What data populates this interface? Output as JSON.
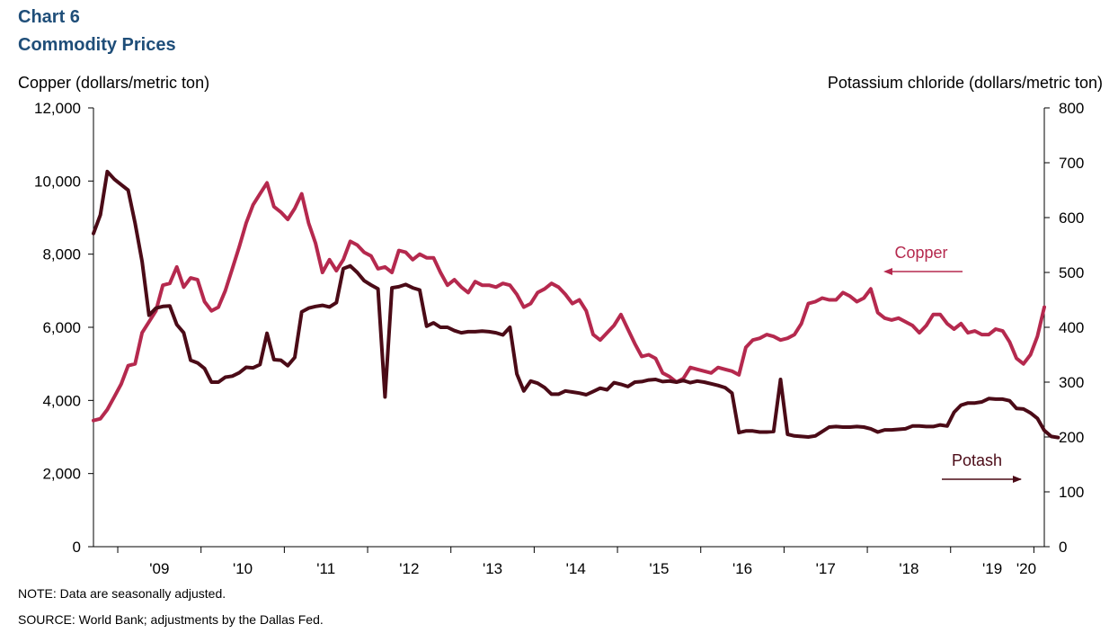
{
  "header": {
    "chart_number": "Chart 6",
    "title": "Commodity  Prices"
  },
  "axes": {
    "left_title": "Copper (dollars/metric ton)",
    "right_title": "Potassium chloride (dollars/metric ton)"
  },
  "footer": {
    "note": "NOTE:  Data are seasonally adjusted.",
    "source": "SOURCE:  World Bank; adjustments  by the Dallas Fed."
  },
  "chart_data": {
    "type": "line",
    "x_start": "2008-09",
    "x_frequency": "monthly",
    "x_tick_labels": [
      "'09",
      "'10",
      "'11",
      "'12",
      "'13",
      "'14",
      "'15",
      "'16",
      "'17",
      "'18",
      "'19",
      "'20"
    ],
    "y_left": {
      "label": "Copper (dollars/metric ton)",
      "min": 0,
      "max": 12000,
      "step": 2000,
      "ticks": [
        "0",
        "2,000",
        "4,000",
        "6,000",
        "8,000",
        "10,000",
        "12,000"
      ]
    },
    "y_right": {
      "label": "Potassium chloride (dollars/metric ton)",
      "min": 0,
      "max": 800,
      "step": 100,
      "ticks": [
        "0",
        "100",
        "200",
        "300",
        "400",
        "500",
        "600",
        "700",
        "800"
      ]
    },
    "grid": false,
    "series": [
      {
        "name": "Copper",
        "axis": "left",
        "color": "#b5294e",
        "annotation_arrow": "left",
        "values": [
          3450,
          3500,
          3750,
          4100,
          4450,
          4950,
          5000,
          5850,
          6150,
          6450,
          7150,
          7200,
          7650,
          7100,
          7350,
          7300,
          6700,
          6450,
          6550,
          7000,
          7600,
          8200,
          8850,
          9350,
          9650,
          9950,
          9300,
          9150,
          8950,
          9250,
          9650,
          8850,
          8300,
          7500,
          7850,
          7550,
          7850,
          8350,
          8250,
          8050,
          7950,
          7600,
          7650,
          7500,
          8100,
          8050,
          7850,
          8000,
          7900,
          7900,
          7500,
          7150,
          7300,
          7100,
          6950,
          7250,
          7150,
          7150,
          7100,
          7200,
          7150,
          6900,
          6550,
          6650,
          6950,
          7050,
          7200,
          7100,
          6900,
          6650,
          6750,
          6450,
          5800,
          5650,
          5850,
          6050,
          6350,
          5950,
          5550,
          5200,
          5250,
          5150,
          4750,
          4650,
          4500,
          4600,
          4900,
          4850,
          4800,
          4750,
          4900,
          4850,
          4800,
          4700,
          5450,
          5650,
          5700,
          5800,
          5750,
          5650,
          5700,
          5800,
          6100,
          6650,
          6700,
          6800,
          6750,
          6750,
          6950,
          6850,
          6700,
          6800,
          7050,
          6400,
          6250,
          6200,
          6250,
          6150,
          6050,
          5850,
          6050,
          6350,
          6350,
          6100,
          5950,
          6100,
          5850,
          5900,
          5800,
          5800,
          5950,
          5900,
          5600,
          5150,
          5000,
          5250,
          5750,
          6550
        ]
      },
      {
        "name": "Potash",
        "axis": "right",
        "color": "#4b0b17",
        "annotation_arrow": "right",
        "values": [
          571,
          605,
          684,
          670,
          660,
          650,
          590,
          520,
          422,
          435,
          438,
          439,
          405,
          390,
          340,
          335,
          325,
          300,
          300,
          309,
          311,
          317,
          327,
          326,
          332,
          389,
          341,
          340,
          330,
          345,
          428,
          435,
          438,
          440,
          437,
          445,
          507,
          512,
          500,
          485,
          477,
          470,
          273,
          472,
          474,
          478,
          472,
          468,
          402,
          408,
          400,
          400,
          394,
          390,
          392,
          392,
          393,
          392,
          390,
          386,
          400,
          315,
          284,
          302,
          298,
          290,
          278,
          278,
          284,
          282,
          280,
          277,
          283,
          289,
          286,
          299,
          296,
          292,
          300,
          301,
          304,
          305,
          301,
          302,
          300,
          303,
          299,
          302,
          300,
          297,
          294,
          290,
          280,
          208,
          211,
          211,
          209,
          209,
          210,
          305,
          205,
          202,
          201,
          200,
          202,
          210,
          218,
          219,
          218,
          218,
          219,
          218,
          215,
          209,
          213,
          213,
          214,
          215,
          220,
          220,
          219,
          219,
          222,
          220,
          245,
          258,
          262,
          262,
          264,
          270,
          269,
          269,
          266,
          252,
          251,
          244,
          234,
          212,
          201,
          199
        ]
      }
    ]
  }
}
